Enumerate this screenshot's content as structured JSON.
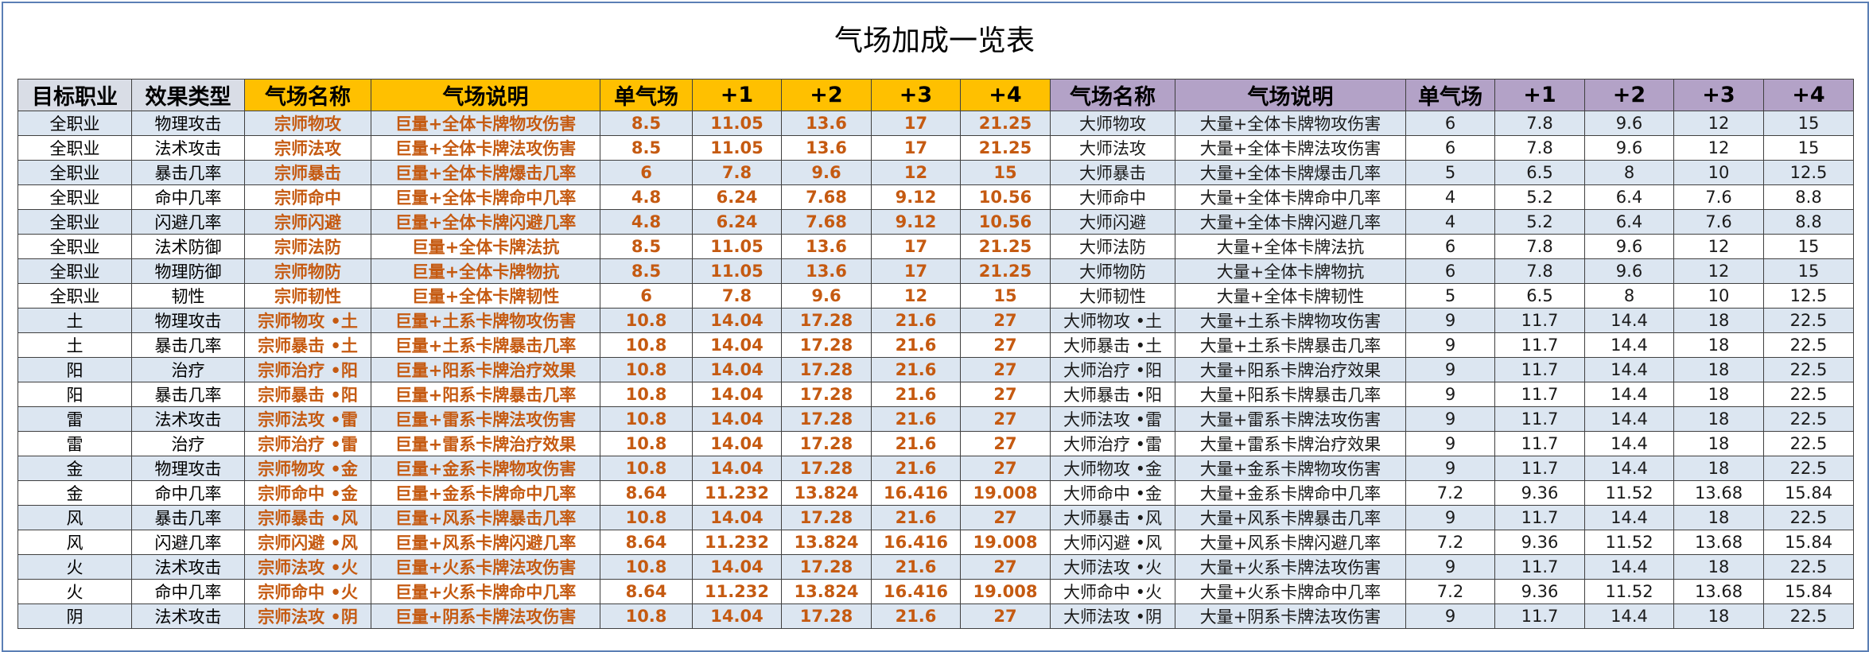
{
  "title": "气场加成一览表",
  "table": {
    "header": [
      "目标职业",
      "效果类型",
      "气场名称",
      "气场说明",
      "单气场",
      "+1",
      "+2",
      "+3",
      "+4",
      "气场名称",
      "气场说明",
      "单气场",
      "+1",
      "+2",
      "+3",
      "+4"
    ],
    "rows": [
      [
        "全职业",
        "物理攻击",
        "宗师物攻",
        "巨量+全体卡牌物攻伤害",
        "8.5",
        "11.05",
        "13.6",
        "17",
        "21.25",
        "大师物攻",
        "大量+全体卡牌物攻伤害",
        "6",
        "7.8",
        "9.6",
        "12",
        "15"
      ],
      [
        "全职业",
        "法术攻击",
        "宗师法攻",
        "巨量+全体卡牌法攻伤害",
        "8.5",
        "11.05",
        "13.6",
        "17",
        "21.25",
        "大师法攻",
        "大量+全体卡牌法攻伤害",
        "6",
        "7.8",
        "9.6",
        "12",
        "15"
      ],
      [
        "全职业",
        "暴击几率",
        "宗师暴击",
        "巨量+全体卡牌爆击几率",
        "6",
        "7.8",
        "9.6",
        "12",
        "15",
        "大师暴击",
        "大量+全体卡牌爆击几率",
        "5",
        "6.5",
        "8",
        "10",
        "12.5"
      ],
      [
        "全职业",
        "命中几率",
        "宗师命中",
        "巨量+全体卡牌命中几率",
        "4.8",
        "6.24",
        "7.68",
        "9.12",
        "10.56",
        "大师命中",
        "大量+全体卡牌命中几率",
        "4",
        "5.2",
        "6.4",
        "7.6",
        "8.8"
      ],
      [
        "全职业",
        "闪避几率",
        "宗师闪避",
        "巨量+全体卡牌闪避几率",
        "4.8",
        "6.24",
        "7.68",
        "9.12",
        "10.56",
        "大师闪避",
        "大量+全体卡牌闪避几率",
        "4",
        "5.2",
        "6.4",
        "7.6",
        "8.8"
      ],
      [
        "全职业",
        "法术防御",
        "宗师法防",
        "巨量+全体卡牌法抗",
        "8.5",
        "11.05",
        "13.6",
        "17",
        "21.25",
        "大师法防",
        "大量+全体卡牌法抗",
        "6",
        "7.8",
        "9.6",
        "12",
        "15"
      ],
      [
        "全职业",
        "物理防御",
        "宗师物防",
        "巨量+全体卡牌物抗",
        "8.5",
        "11.05",
        "13.6",
        "17",
        "21.25",
        "大师物防",
        "大量+全体卡牌物抗",
        "6",
        "7.8",
        "9.6",
        "12",
        "15"
      ],
      [
        "全职业",
        "韧性",
        "宗师韧性",
        "巨量+全体卡牌韧性",
        "6",
        "7.8",
        "9.6",
        "12",
        "15",
        "大师韧性",
        "大量+全体卡牌韧性",
        "5",
        "6.5",
        "8",
        "10",
        "12.5"
      ],
      [
        "土",
        "物理攻击",
        "宗师物攻 •土",
        "巨量+土系卡牌物攻伤害",
        "10.8",
        "14.04",
        "17.28",
        "21.6",
        "27",
        "大师物攻 •土",
        "大量+土系卡牌物攻伤害",
        "9",
        "11.7",
        "14.4",
        "18",
        "22.5"
      ],
      [
        "土",
        "暴击几率",
        "宗师暴击 •土",
        "巨量+土系卡牌暴击几率",
        "10.8",
        "14.04",
        "17.28",
        "21.6",
        "27",
        "大师暴击 •土",
        "大量+土系卡牌暴击几率",
        "9",
        "11.7",
        "14.4",
        "18",
        "22.5"
      ],
      [
        "阳",
        "治疗",
        "宗师治疗 •阳",
        "巨量+阳系卡牌治疗效果",
        "10.8",
        "14.04",
        "17.28",
        "21.6",
        "27",
        "大师治疗 •阳",
        "大量+阳系卡牌治疗效果",
        "9",
        "11.7",
        "14.4",
        "18",
        "22.5"
      ],
      [
        "阳",
        "暴击几率",
        "宗师暴击 •阳",
        "巨量+阳系卡牌暴击几率",
        "10.8",
        "14.04",
        "17.28",
        "21.6",
        "27",
        "大师暴击 •阳",
        "大量+阳系卡牌暴击几率",
        "9",
        "11.7",
        "14.4",
        "18",
        "22.5"
      ],
      [
        "雷",
        "法术攻击",
        "宗师法攻 •雷",
        "巨量+雷系卡牌法攻伤害",
        "10.8",
        "14.04",
        "17.28",
        "21.6",
        "27",
        "大师法攻 •雷",
        "大量+雷系卡牌法攻伤害",
        "9",
        "11.7",
        "14.4",
        "18",
        "22.5"
      ],
      [
        "雷",
        "治疗",
        "宗师治疗 •雷",
        "巨量+雷系卡牌治疗效果",
        "10.8",
        "14.04",
        "17.28",
        "21.6",
        "27",
        "大师治疗 •雷",
        "大量+雷系卡牌治疗效果",
        "9",
        "11.7",
        "14.4",
        "18",
        "22.5"
      ],
      [
        "金",
        "物理攻击",
        "宗师物攻 •金",
        "巨量+金系卡牌物攻伤害",
        "10.8",
        "14.04",
        "17.28",
        "21.6",
        "27",
        "大师物攻 •金",
        "大量+金系卡牌物攻伤害",
        "9",
        "11.7",
        "14.4",
        "18",
        "22.5"
      ],
      [
        "金",
        "命中几率",
        "宗师命中 •金",
        "巨量+金系卡牌命中几率",
        "8.64",
        "11.232",
        "13.824",
        "16.416",
        "19.008",
        "大师命中 •金",
        "大量+金系卡牌命中几率",
        "7.2",
        "9.36",
        "11.52",
        "13.68",
        "15.84"
      ],
      [
        "风",
        "暴击几率",
        "宗师暴击 •风",
        "巨量+风系卡牌暴击几率",
        "10.8",
        "14.04",
        "17.28",
        "21.6",
        "27",
        "大师暴击 •风",
        "大量+风系卡牌暴击几率",
        "9",
        "11.7",
        "14.4",
        "18",
        "22.5"
      ],
      [
        "风",
        "闪避几率",
        "宗师闪避 •风",
        "巨量+风系卡牌闪避几率",
        "8.64",
        "11.232",
        "13.824",
        "16.416",
        "19.008",
        "大师闪避 •风",
        "大量+风系卡牌闪避几率",
        "7.2",
        "9.36",
        "11.52",
        "13.68",
        "15.84"
      ],
      [
        "火",
        "法术攻击",
        "宗师法攻 •火",
        "巨量+火系卡牌法攻伤害",
        "10.8",
        "14.04",
        "17.28",
        "21.6",
        "27",
        "大师法攻 •火",
        "大量+火系卡牌法攻伤害",
        "9",
        "11.7",
        "14.4",
        "18",
        "22.5"
      ],
      [
        "火",
        "命中几率",
        "宗师命中 •火",
        "巨量+火系卡牌命中几率",
        "8.64",
        "11.232",
        "13.824",
        "16.416",
        "19.008",
        "大师命中 •火",
        "大量+火系卡牌命中几率",
        "7.2",
        "9.36",
        "11.52",
        "13.68",
        "15.84"
      ],
      [
        "阴",
        "法术攻击",
        "宗师法攻 •阴",
        "巨量+阴系卡牌法攻伤害",
        "10.8",
        "14.04",
        "17.28",
        "21.6",
        "27",
        "大师法攻 •阴",
        "大量+阴系卡牌法攻伤害",
        "9",
        "11.7",
        "14.4",
        "18",
        "22.5"
      ]
    ]
  }
}
